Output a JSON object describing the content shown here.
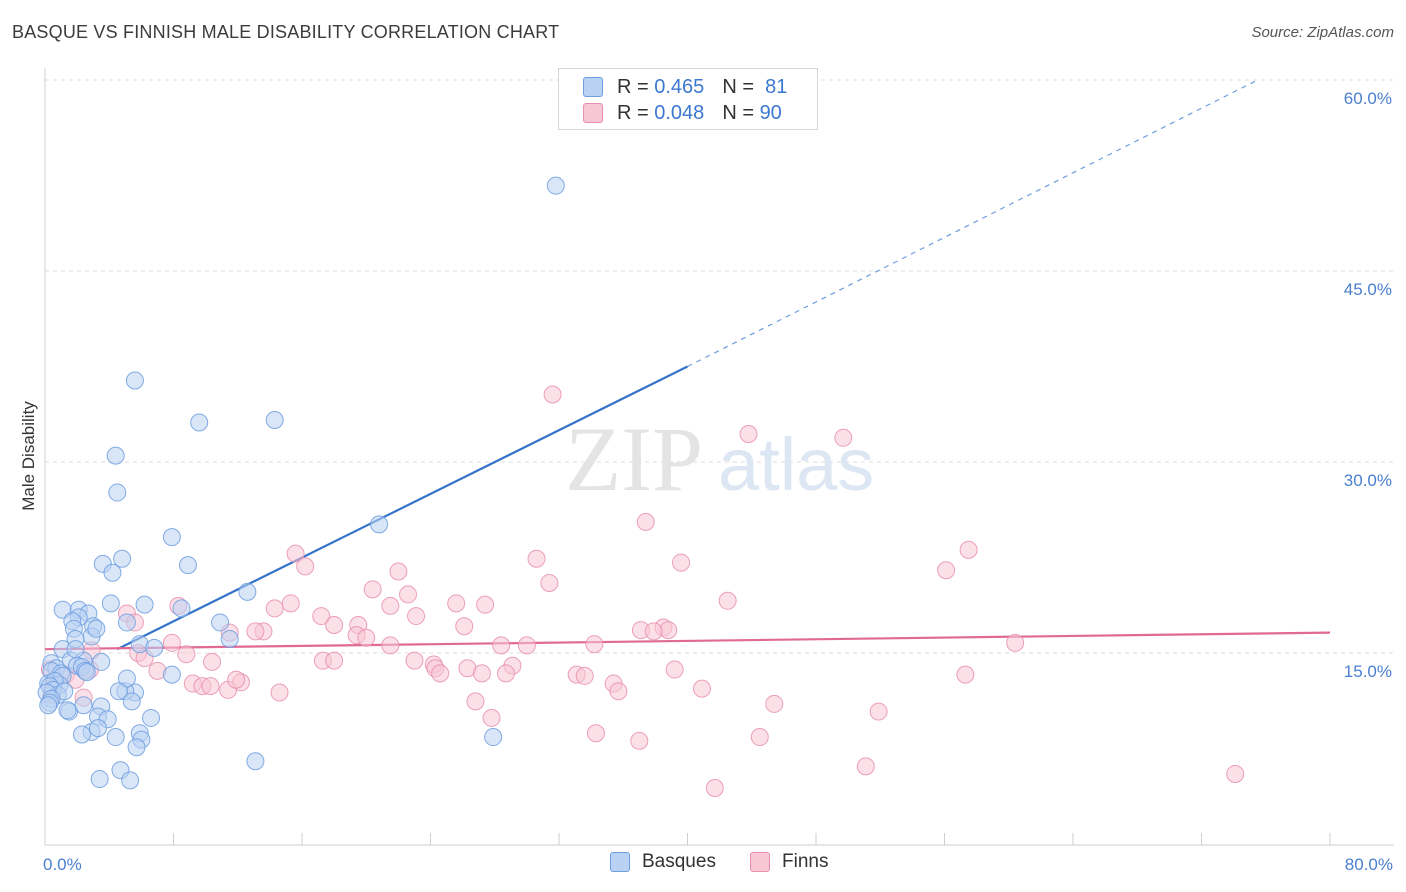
{
  "title": "BASQUE VS FINNISH MALE DISABILITY CORRELATION CHART",
  "source": "Source: ZipAtlas.com",
  "watermark": {
    "zip": "ZIP",
    "atlas": "atlas"
  },
  "legend": [
    {
      "name": "Basques",
      "r_label": "R =",
      "r_value": "0.465",
      "n_label": "N =",
      "n_value": "81"
    },
    {
      "name": "Finns",
      "r_label": "R =",
      "r_value": "0.048",
      "n_label": "N =",
      "n_value": "90"
    }
  ],
  "colors": {
    "basques_fill": "#b9d1f2",
    "basques_stroke": "#6d9ee0",
    "basques_line": "#3573c8",
    "finns_fill": "#f8c7d6",
    "finns_stroke": "#e98fae",
    "finns_line": "#e06a94",
    "axis_label": "#4a7fcf",
    "grid": "#dddddd"
  },
  "chart_data": {
    "type": "scatter",
    "title": "BASQUE VS FINNISH MALE DISABILITY CORRELATION CHART",
    "xlabel": "",
    "ylabel": "Male Disability",
    "xlim": [
      0,
      80
    ],
    "ylim": [
      0,
      60
    ],
    "x_tick_labels": [
      {
        "value": 0,
        "label": "0.0%"
      },
      {
        "value": 80,
        "label": "80.0%"
      }
    ],
    "y_tick_labels": [
      {
        "value": 15,
        "label": "15.0%"
      },
      {
        "value": 30,
        "label": "30.0%"
      },
      {
        "value": 45,
        "label": "45.0%"
      },
      {
        "value": 60,
        "label": "60.0%"
      }
    ],
    "series": [
      {
        "name": "Basques",
        "r": 0.465,
        "n": 81,
        "trend": {
          "x0": 4.5,
          "y0": 15.3,
          "x1": 40.0,
          "y1": 37.5,
          "dash_to_x": 75.5,
          "dash_to_y": 60.0
        },
        "points": [
          [
            31.8,
            51.7
          ],
          [
            5.6,
            36.4
          ],
          [
            9.6,
            33.1
          ],
          [
            14.3,
            33.3
          ],
          [
            4.4,
            30.5
          ],
          [
            4.5,
            27.6
          ],
          [
            20.8,
            25.1
          ],
          [
            7.9,
            24.1
          ],
          [
            4.8,
            22.4
          ],
          [
            3.6,
            22.0
          ],
          [
            8.9,
            21.9
          ],
          [
            4.2,
            21.3
          ],
          [
            12.6,
            19.8
          ],
          [
            8.5,
            18.5
          ],
          [
            1.1,
            18.4
          ],
          [
            2.1,
            18.4
          ],
          [
            2.7,
            18.1
          ],
          [
            4.1,
            18.9
          ],
          [
            6.2,
            18.8
          ],
          [
            2.1,
            17.8
          ],
          [
            1.7,
            17.5
          ],
          [
            5.1,
            17.4
          ],
          [
            3.0,
            17.1
          ],
          [
            10.9,
            17.4
          ],
          [
            1.8,
            16.9
          ],
          [
            2.9,
            16.3
          ],
          [
            1.9,
            16.1
          ],
          [
            11.5,
            16.1
          ],
          [
            5.9,
            15.7
          ],
          [
            1.1,
            15.3
          ],
          [
            0.4,
            14.2
          ],
          [
            1.6,
            14.4
          ],
          [
            2.4,
            14.4
          ],
          [
            0.7,
            13.8
          ],
          [
            0.4,
            13.6
          ],
          [
            2.0,
            14.0
          ],
          [
            2.3,
            13.9
          ],
          [
            2.5,
            13.6
          ],
          [
            1.0,
            13.4
          ],
          [
            1.1,
            13.2
          ],
          [
            0.2,
            12.6
          ],
          [
            0.9,
            12.5
          ],
          [
            0.6,
            12.8
          ],
          [
            0.3,
            12.4
          ],
          [
            0.5,
            12.1
          ],
          [
            0.8,
            11.7
          ],
          [
            1.2,
            12.0
          ],
          [
            0.1,
            11.9
          ],
          [
            0.4,
            11.4
          ],
          [
            0.3,
            11.1
          ],
          [
            0.2,
            10.9
          ],
          [
            1.5,
            10.4
          ],
          [
            1.4,
            10.5
          ],
          [
            2.4,
            10.9
          ],
          [
            3.5,
            10.8
          ],
          [
            3.3,
            10.0
          ],
          [
            3.9,
            9.8
          ],
          [
            6.6,
            9.9
          ],
          [
            2.9,
            8.8
          ],
          [
            3.3,
            9.1
          ],
          [
            4.4,
            8.4
          ],
          [
            2.3,
            8.6
          ],
          [
            5.9,
            8.7
          ],
          [
            6.0,
            8.2
          ],
          [
            5.7,
            7.6
          ],
          [
            4.7,
            5.8
          ],
          [
            3.4,
            5.1
          ],
          [
            5.3,
            5.0
          ],
          [
            13.1,
            6.5
          ],
          [
            27.9,
            8.4
          ],
          [
            5.6,
            11.9
          ],
          [
            5.0,
            12.0
          ],
          [
            5.4,
            11.2
          ],
          [
            5.1,
            13.0
          ],
          [
            4.6,
            12.0
          ],
          [
            7.9,
            13.3
          ],
          [
            3.5,
            14.3
          ],
          [
            6.8,
            15.4
          ],
          [
            1.9,
            15.3
          ],
          [
            3.2,
            16.9
          ],
          [
            2.6,
            13.5
          ]
        ]
      },
      {
        "name": "Finns",
        "r": 0.048,
        "n": 90,
        "trend": {
          "x0": 0,
          "y0": 15.3,
          "x1": 80,
          "y1": 16.6
        },
        "points": [
          [
            31.6,
            35.3
          ],
          [
            43.8,
            32.2
          ],
          [
            49.7,
            31.9
          ],
          [
            37.4,
            25.3
          ],
          [
            57.5,
            23.1
          ],
          [
            15.6,
            22.8
          ],
          [
            30.6,
            22.4
          ],
          [
            39.6,
            22.1
          ],
          [
            56.1,
            21.5
          ],
          [
            16.2,
            21.8
          ],
          [
            22.0,
            21.4
          ],
          [
            31.4,
            20.5
          ],
          [
            20.4,
            20.0
          ],
          [
            22.6,
            19.6
          ],
          [
            42.5,
            19.1
          ],
          [
            8.3,
            18.7
          ],
          [
            15.3,
            18.9
          ],
          [
            25.6,
            18.9
          ],
          [
            27.4,
            18.8
          ],
          [
            14.3,
            18.5
          ],
          [
            21.5,
            18.7
          ],
          [
            5.1,
            18.1
          ],
          [
            17.2,
            17.9
          ],
          [
            23.1,
            17.9
          ],
          [
            18.0,
            17.2
          ],
          [
            19.5,
            17.2
          ],
          [
            26.1,
            17.1
          ],
          [
            38.5,
            17.0
          ],
          [
            38.8,
            16.8
          ],
          [
            5.6,
            17.4
          ],
          [
            13.6,
            16.7
          ],
          [
            13.1,
            16.7
          ],
          [
            19.4,
            16.4
          ],
          [
            20.0,
            16.2
          ],
          [
            11.5,
            16.6
          ],
          [
            7.9,
            15.8
          ],
          [
            21.5,
            15.6
          ],
          [
            28.4,
            15.6
          ],
          [
            30.0,
            15.6
          ],
          [
            34.2,
            15.7
          ],
          [
            60.4,
            15.8
          ],
          [
            2.9,
            15.2
          ],
          [
            5.8,
            15.0
          ],
          [
            8.8,
            14.9
          ],
          [
            6.2,
            14.6
          ],
          [
            17.3,
            14.4
          ],
          [
            18.0,
            14.4
          ],
          [
            23.0,
            14.4
          ],
          [
            29.1,
            14.0
          ],
          [
            10.4,
            14.3
          ],
          [
            24.2,
            14.1
          ],
          [
            24.3,
            13.8
          ],
          [
            37.1,
            16.8
          ],
          [
            37.9,
            16.7
          ],
          [
            39.2,
            13.7
          ],
          [
            26.3,
            13.8
          ],
          [
            0.3,
            13.7
          ],
          [
            1.3,
            13.3
          ],
          [
            2.8,
            13.7
          ],
          [
            7.0,
            13.6
          ],
          [
            24.6,
            13.4
          ],
          [
            27.2,
            13.4
          ],
          [
            28.7,
            13.4
          ],
          [
            33.1,
            13.3
          ],
          [
            33.6,
            13.2
          ],
          [
            57.3,
            13.3
          ],
          [
            1.9,
            12.9
          ],
          [
            9.2,
            12.6
          ],
          [
            12.2,
            12.7
          ],
          [
            11.4,
            12.1
          ],
          [
            9.8,
            12.4
          ],
          [
            10.3,
            12.4
          ],
          [
            11.9,
            12.9
          ],
          [
            35.4,
            12.6
          ],
          [
            35.7,
            12.0
          ],
          [
            14.6,
            11.9
          ],
          [
            40.9,
            12.2
          ],
          [
            0.5,
            12.3
          ],
          [
            0.4,
            11.7
          ],
          [
            2.4,
            11.5
          ],
          [
            26.8,
            11.2
          ],
          [
            45.4,
            11.0
          ],
          [
            51.9,
            10.4
          ],
          [
            27.8,
            9.9
          ],
          [
            37.0,
            8.1
          ],
          [
            44.5,
            8.4
          ],
          [
            34.3,
            8.7
          ],
          [
            51.1,
            6.1
          ],
          [
            41.7,
            4.4
          ],
          [
            74.1,
            5.5
          ]
        ]
      }
    ]
  }
}
